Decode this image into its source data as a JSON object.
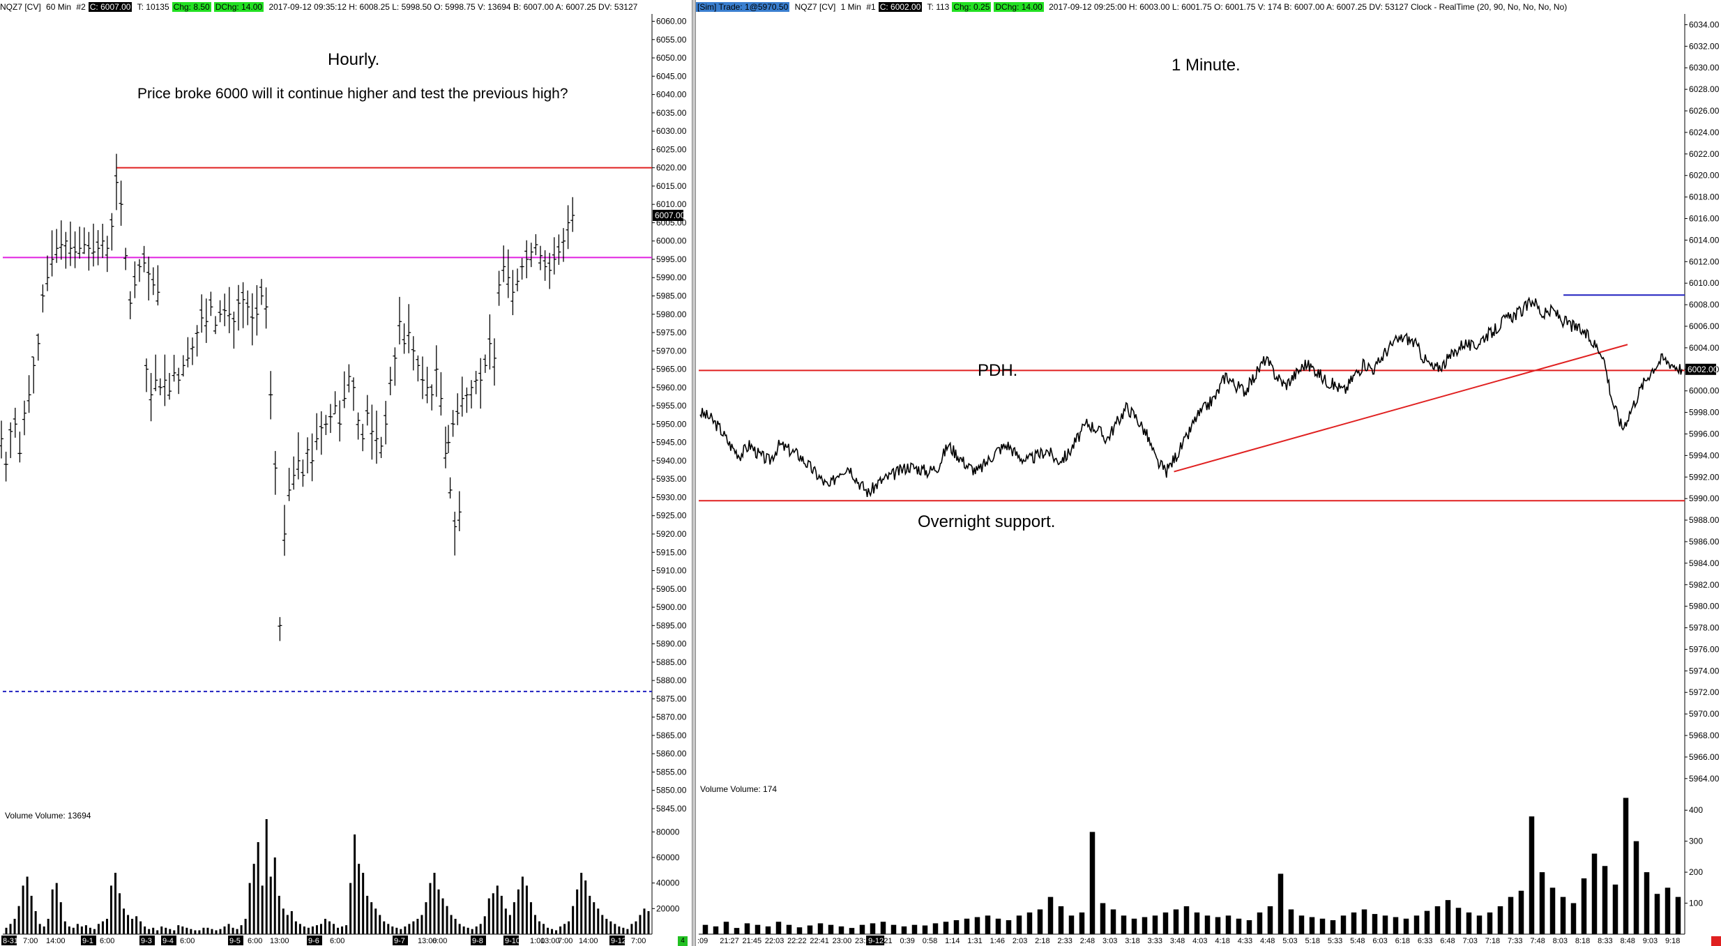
{
  "left": {
    "header": {
      "symbol": "NQZ7 [CV]",
      "interval": "60 Min",
      "tab": "#2",
      "close": "C: 6007.00",
      "trades": "T: 10135",
      "chg": "Chg: 8.50",
      "dchg": "DChg: 14.00",
      "info": "2017-09-12 09:35:12 H: 6008.25 L: 5998.50 O: 5998.75 V: 13694 B: 6007.00 A: 6007.25 DV: 53127"
    },
    "annotations": {
      "title": "Hourly.",
      "question": "Price broke 6000 will it continue higher and test the previous high?"
    },
    "volume_label": "Volume  Volume: 13694",
    "price_label": "6007.00",
    "date_labels": [
      "8-31",
      "9-1",
      "9-3",
      "9-4",
      "9-5",
      "9-6",
      "9-7",
      "9-8",
      "9-10",
      "9-12"
    ],
    "time_labels": [
      "7:00",
      "14:00",
      "6:00",
      "6:00",
      "6:00",
      "13:00",
      "6:00",
      "13:00",
      "6:00",
      "13:00",
      "1:00",
      "7:00",
      "14:00",
      "7:00"
    ],
    "badge": "4"
  },
  "right": {
    "header": {
      "sim": "[Sim]  Trade: 1@5970.50",
      "symbol": "NQZ7 [CV]",
      "interval": "1 Min",
      "tab": "#1",
      "close": "C: 6002.00",
      "trades": "T: 113",
      "chg": "Chg: 0.25",
      "dchg": "DChg: 14.00",
      "info": "2017-09-12 09:25:00 H: 6003.00 L: 6001.75 O: 6001.75 V: 174 B: 6007.00 A: 6007.25 DV: 53127 Clock - RealTime  (20, 90, No, No, No, No)"
    },
    "annotations": {
      "title": "1 Minute.",
      "pdh": "PDH.",
      "support": "Overnight support."
    },
    "volume_label": "Volume  Volume: 174",
    "price_label": "6002.00",
    "date_label": "9-12",
    "time_labels": [
      ":09",
      "21:27",
      "21:45",
      "22:03",
      "22:22",
      "22:41",
      "23:00",
      "23:23",
      "0:21",
      "0:39",
      "0:58",
      "1:14",
      "1:31",
      "1:46",
      "2:03",
      "2:18",
      "2:33",
      "2:48",
      "3:03",
      "3:18",
      "3:33",
      "3:48",
      "4:03",
      "4:18",
      "4:33",
      "4:48",
      "5:03",
      "5:18",
      "5:33",
      "5:48",
      "6:03",
      "6:18",
      "6:33",
      "6:48",
      "7:03",
      "7:18",
      "7:33",
      "7:48",
      "8:03",
      "8:18",
      "8:33",
      "8:48",
      "9:03",
      "9:18"
    ]
  },
  "chart_data": [
    {
      "type": "ohlc",
      "interval": "60 Min",
      "ylim": [
        5845,
        6062
      ],
      "y_ticks": [
        6060,
        6055,
        6050,
        6045,
        6040,
        6035,
        6030,
        6025,
        6020,
        6015,
        6010,
        6005,
        6000,
        5995,
        5990,
        5985,
        5980,
        5975,
        5970,
        5965,
        5960,
        5955,
        5950,
        5945,
        5940,
        5935,
        5930,
        5925,
        5920,
        5915,
        5910,
        5905,
        5900,
        5895,
        5890,
        5885,
        5880,
        5875,
        5870,
        5865,
        5860,
        5855,
        5850,
        5845
      ],
      "lines": [
        {
          "kind": "horizontal",
          "price": 6020,
          "color": "#e02020",
          "style": "solid",
          "x_from": 0.175
        },
        {
          "kind": "horizontal",
          "price": 5995.5,
          "color": "#e020e0",
          "style": "solid",
          "x_from": 0
        },
        {
          "kind": "horizontal",
          "price": 5877,
          "color": "#2020c0",
          "style": "dashed",
          "x_from": 0
        }
      ],
      "segments": [
        [
          5946,
          5939,
          5948,
          5950,
          5942,
          5953,
          5958,
          5966,
          5972,
          5985,
          5990,
          5995,
          5998,
          5999,
          6000,
          5998,
          5997,
          5998,
          5999,
          5998,
          5997,
          5998,
          6000,
          5998,
          6004,
          6016,
          6010,
          5996,
          5983,
          5988,
          5993,
          5994,
          5991,
          5988,
          5986
        ],
        [
          5965,
          5958,
          5962,
          5960,
          5962,
          5959,
          5964,
          5962,
          5966,
          5968,
          5971,
          5975,
          5979,
          5978,
          5982,
          5977,
          5980,
          5981,
          5980,
          5978,
          5983,
          5984,
          5982,
          5979,
          5980,
          5985,
          5982,
          5958,
          5938,
          5895,
          5920,
          5932,
          5936,
          5940,
          5936,
          5943,
          5940,
          5946,
          5949,
          5950,
          5952,
          5955,
          5950,
          5957,
          5963,
          5960,
          5951,
          5946,
          5953,
          5948,
          5946,
          5944,
          5950,
          5962,
          5968,
          5978,
          5972,
          5975,
          5970,
          5966,
          5962,
          5960,
          5958,
          5965,
          5957,
          5942,
          5932,
          5922,
          5926
        ],
        [
          5945,
          5950,
          5953,
          5957,
          5958,
          5960,
          5962,
          5962,
          5966,
          5972,
          5968,
          5988,
          5993,
          5990,
          5986,
          5989,
          5993,
          5995,
          5997,
          5999,
          5996,
          5993,
          5992,
          5995,
          5997,
          6000,
          6005,
          6007
        ]
      ],
      "volume": {
        "ylim": [
          0,
          90000
        ],
        "y_ticks": [
          80000,
          60000,
          40000,
          20000
        ],
        "values": [
          5000,
          8000,
          12000,
          22000,
          38000,
          45000,
          30000,
          18000,
          8000,
          6000,
          12000,
          35000,
          40000,
          25000,
          10000,
          6000,
          5000,
          8000,
          6000,
          7000,
          5000,
          4000,
          8000,
          10000,
          12000,
          38000,
          48000,
          32000,
          20000,
          15000,
          12000,
          14000,
          10000,
          6000,
          4000,
          5000,
          3000,
          6000,
          5000,
          4000,
          3000,
          7000,
          6000,
          5000,
          4000,
          3000,
          3000,
          5000,
          5000,
          4000,
          3000,
          4000,
          6000,
          8000,
          5000,
          4000,
          7000,
          12000,
          40000,
          55000,
          72000,
          38000,
          90000,
          45000,
          60000,
          30000,
          20000,
          15000,
          18000,
          10000,
          8000,
          6000,
          5000,
          6000,
          7000,
          8000,
          12000,
          10000,
          8000,
          5000,
          6000,
          7000,
          40000,
          78000,
          55000,
          48000,
          30000,
          25000,
          20000,
          15000,
          10000,
          8000,
          6000,
          5000,
          4000,
          6000,
          8000,
          10000,
          12000,
          15000,
          25000,
          40000,
          48000,
          35000,
          28000,
          22000,
          15000,
          12000,
          8000,
          6000,
          5000,
          4000,
          6000,
          8000,
          14000,
          28000,
          32000,
          38000,
          30000,
          20000,
          15000,
          25000,
          35000,
          45000,
          38000,
          25000,
          15000,
          10000,
          8000,
          5000,
          4000,
          3000,
          6000,
          8000,
          10000,
          22000,
          35000,
          48000,
          42000,
          30000,
          25000,
          20000,
          15000,
          12000,
          10000,
          8000,
          6000,
          5000,
          4000,
          8000,
          10000,
          15000,
          20000,
          18000
        ]
      }
    },
    {
      "type": "ohlc",
      "interval": "1 Min",
      "ylim": [
        5962.5,
        6035
      ],
      "y_ticks": [
        6034,
        6032,
        6030,
        6028,
        6026,
        6024,
        6022,
        6020,
        6018,
        6016,
        6014,
        6012,
        6010,
        6008,
        6006,
        6004,
        6002,
        6000,
        5998,
        5996,
        5994,
        5992,
        5990,
        5988,
        5986,
        5984,
        5982,
        5980,
        5978,
        5976,
        5974,
        5972,
        5970,
        5968,
        5966,
        5964
      ],
      "lines": [
        {
          "kind": "horizontal",
          "price": 6001.9,
          "color": "#e02020",
          "style": "solid",
          "x_from": 0
        },
        {
          "kind": "horizontal",
          "price": 5989.8,
          "color": "#e02020",
          "style": "solid",
          "x_from": 0
        },
        {
          "kind": "horizontal",
          "price": 6008.9,
          "color": "#2020c0",
          "style": "solid",
          "x_from": 0.877
        },
        {
          "kind": "trend",
          "from": [
            0.482,
            5992.5
          ],
          "to": [
            0.942,
            6004.3
          ],
          "color": "#e02020"
        }
      ],
      "series": [
        5998,
        5997.5,
        5996.5,
        5995,
        5994,
        5995,
        5994,
        5993.5,
        5995,
        5994.5,
        5994,
        5993,
        5992,
        5991,
        5992.5,
        5993,
        5991.5,
        5990.5,
        5991.5,
        5992,
        5992.5,
        5993,
        5992.8,
        5992.5,
        5993,
        5995,
        5994,
        5993,
        5992.5,
        5993.5,
        5994.5,
        5995,
        5994,
        5993.5,
        5994,
        5994.5,
        5993.5,
        5994,
        5995.5,
        5997,
        5996.5,
        5995.5,
        5997,
        5998.5,
        5997.5,
        5996,
        5993.5,
        5992.5,
        5994,
        5995.5,
        5997.5,
        5998.5,
        5999.5,
        6001.5,
        6000.5,
        6000,
        6001.5,
        6003,
        6001.5,
        6000.5,
        6001.5,
        6002.5,
        6002,
        6001,
        6000.5,
        6000,
        6001.5,
        6002.5,
        6002,
        6003.5,
        6004.5,
        6005,
        6004.5,
        6003,
        6002,
        6002.5,
        6003.5,
        6004.5,
        6004,
        6005,
        6005.5,
        6006.5,
        6007,
        6007.5,
        6008.5,
        6007,
        6007.5,
        6006.5,
        6006,
        6005.5,
        6004.5,
        6003.5,
        5999,
        5996.5,
        5998.5,
        6000.5,
        6002,
        6003,
        6002.5,
        6002
      ],
      "volume": {
        "ylim": [
          0,
          450
        ],
        "y_ticks": [
          400,
          300,
          200,
          100
        ],
        "values": [
          30,
          25,
          40,
          20,
          35,
          30,
          25,
          40,
          30,
          22,
          28,
          35,
          30,
          25,
          20,
          30,
          35,
          40,
          30,
          25,
          30,
          28,
          35,
          40,
          45,
          50,
          55,
          60,
          50,
          45,
          60,
          70,
          80,
          120,
          90,
          60,
          70,
          330,
          100,
          80,
          60,
          50,
          55,
          60,
          70,
          80,
          90,
          70,
          60,
          55,
          60,
          50,
          45,
          70,
          90,
          195,
          80,
          60,
          55,
          50,
          45,
          60,
          70,
          80,
          65,
          60,
          55,
          50,
          60,
          75,
          90,
          110,
          85,
          70,
          60,
          70,
          90,
          120,
          140,
          380,
          200,
          150,
          120,
          100,
          180,
          260,
          220,
          160,
          440,
          300,
          200,
          130,
          150,
          120
        ]
      }
    }
  ]
}
